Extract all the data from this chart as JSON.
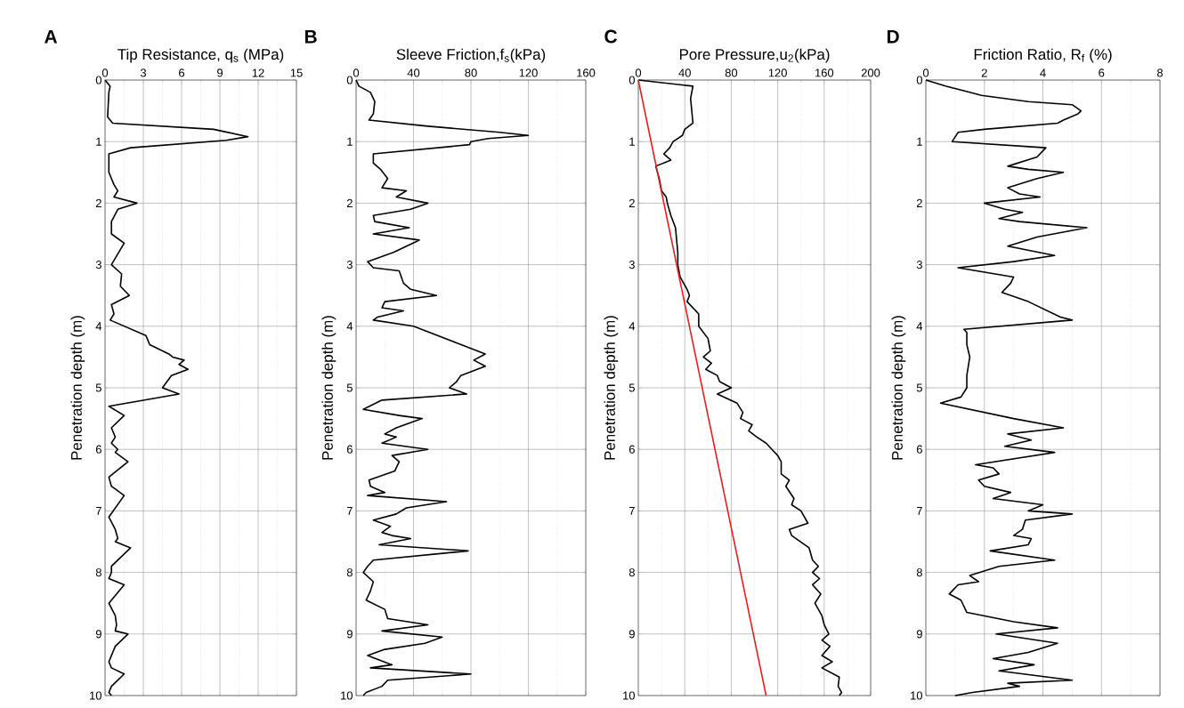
{
  "chart_data": [
    {
      "type": "line",
      "title": "A",
      "xlabel": "Tip Resistance, q$_{s}$ (MPa)",
      "ylabel": "Penetration depth (m)",
      "xlim": [
        0,
        15
      ],
      "xticks": [
        0,
        3,
        6,
        9,
        12,
        15
      ],
      "ylim": [
        10,
        0
      ],
      "yticks": [
        0,
        1,
        2,
        3,
        4,
        5,
        6,
        7,
        8,
        9,
        10
      ],
      "grid": true,
      "series": [
        {
          "color": "#000000",
          "x": [
            0,
            0.4,
            0.3,
            0.2,
            0.6,
            8.5,
            11.2,
            9.5,
            2,
            0.3,
            0.3,
            0.7,
            1,
            0.7,
            2.5,
            1,
            0.5,
            0.5,
            1.5,
            0.5,
            1.3,
            1.2,
            1.9,
            0.5,
            0.7,
            0.4,
            3.2,
            3.5,
            5,
            5.3,
            6.2,
            5.8,
            6.5,
            5.2,
            4.5,
            5.8,
            0.3,
            1.5,
            0.5,
            0.8,
            0.5,
            1,
            0.8,
            1.8,
            0.3,
            0.5,
            1.5,
            0.3,
            0.8,
            1,
            0.8,
            2,
            0.5,
            0.5,
            0.3,
            1.5,
            0.3,
            0.8,
            0.9,
            0.8,
            1.8,
            0.8,
            0.3,
            0.5,
            1.5,
            0.5,
            0.3,
            0.5
          ],
          "values": [
            0,
            0.1,
            0.2,
            0.6,
            0.7,
            0.8,
            0.92,
            0.98,
            1.1,
            1.2,
            1.5,
            1.7,
            1.8,
            1.9,
            2.0,
            2.1,
            2.3,
            2.5,
            2.65,
            3.0,
            3.15,
            3.35,
            3.5,
            3.65,
            3.8,
            3.9,
            4.15,
            4.3,
            4.45,
            4.5,
            4.55,
            4.62,
            4.7,
            4.8,
            5.0,
            5.1,
            5.3,
            5.45,
            5.65,
            5.8,
            5.9,
            6.0,
            6.05,
            6.2,
            6.45,
            6.6,
            6.75,
            7.1,
            7.3,
            7.45,
            7.5,
            7.6,
            7.9,
            8.0,
            8.1,
            8.2,
            8.5,
            8.7,
            8.85,
            8.95,
            9.0,
            9.2,
            9.45,
            9.55,
            9.65,
            9.85,
            9.95,
            10
          ]
        }
      ]
    },
    {
      "type": "line",
      "title": "B",
      "xlabel": "Sleeve Friction,f$_{s}$(kPa)",
      "ylabel": "Penetration depth (m)",
      "xlim": [
        0,
        160
      ],
      "xticks": [
        0,
        40,
        80,
        120,
        160
      ],
      "ylim": [
        10,
        0
      ],
      "yticks": [
        0,
        1,
        2,
        3,
        4,
        5,
        6,
        7,
        8,
        9,
        10
      ],
      "grid": true,
      "series": [
        {
          "color": "#000000",
          "x": [
            0,
            2,
            10,
            13,
            12,
            9,
            50,
            100,
            120,
            92,
            80,
            79,
            12,
            12,
            17,
            22,
            18,
            35,
            28,
            50,
            38,
            12,
            13,
            37,
            12,
            44,
            26,
            8,
            12,
            30,
            33,
            38,
            56,
            20,
            18,
            33,
            15,
            12,
            40,
            90,
            82,
            90,
            73,
            70,
            65,
            77,
            18,
            5,
            30,
            46,
            28,
            20,
            28,
            18,
            50,
            25,
            30,
            27,
            9,
            10,
            20,
            8,
            63,
            35,
            28,
            12,
            24,
            18,
            25,
            38,
            16,
            78,
            12,
            8,
            5,
            12,
            10,
            7,
            20,
            22,
            50,
            18,
            60,
            48,
            20,
            8,
            25,
            10,
            80,
            22,
            18,
            7,
            5
          ],
          "values": [
            0,
            0.1,
            0.2,
            0.35,
            0.55,
            0.65,
            0.75,
            0.85,
            0.9,
            0.95,
            1.0,
            1.05,
            1.2,
            1.35,
            1.45,
            1.6,
            1.75,
            1.8,
            1.9,
            2.0,
            2.1,
            2.2,
            2.3,
            2.4,
            2.5,
            2.6,
            2.8,
            2.95,
            3.05,
            3.1,
            3.3,
            3.4,
            3.5,
            3.6,
            3.7,
            3.75,
            3.85,
            3.9,
            4.0,
            4.45,
            4.55,
            4.65,
            4.8,
            4.9,
            5.0,
            5.1,
            5.2,
            5.35,
            5.45,
            5.5,
            5.65,
            5.75,
            5.8,
            5.9,
            6.0,
            6.1,
            6.2,
            6.35,
            6.5,
            6.6,
            6.7,
            6.75,
            6.85,
            6.95,
            7.05,
            7.15,
            7.25,
            7.35,
            7.4,
            7.45,
            7.55,
            7.65,
            7.8,
            7.9,
            8.0,
            8.15,
            8.3,
            8.45,
            8.6,
            8.75,
            8.85,
            8.95,
            9.05,
            9.15,
            9.25,
            9.35,
            9.5,
            9.55,
            9.65,
            9.75,
            9.85,
            9.95,
            10
          ]
        }
      ]
    },
    {
      "type": "line",
      "title": "C",
      "xlabel": "Pore Pressure,u$_{2}$(kPa)",
      "ylabel": "Penetration depth (m)",
      "xlim": [
        0,
        200
      ],
      "xticks": [
        0,
        40,
        80,
        120,
        160,
        200
      ],
      "ylim": [
        10,
        0
      ],
      "yticks": [
        0,
        1,
        2,
        3,
        4,
        5,
        6,
        7,
        8,
        9,
        10
      ],
      "grid": true,
      "series": [
        {
          "color": "#000000",
          "x": [
            0,
            47,
            45,
            46,
            47,
            40,
            38,
            30,
            27,
            22,
            28,
            15,
            18,
            20,
            24,
            25,
            28,
            32,
            33,
            34,
            34,
            36,
            42,
            44,
            42,
            52,
            52,
            60,
            62,
            56,
            63,
            58,
            68,
            70,
            80,
            68,
            85,
            90,
            88,
            98,
            95,
            102,
            110,
            115,
            120,
            123,
            123,
            130,
            127,
            134,
            132,
            140,
            146,
            130,
            132,
            147,
            150,
            155,
            150,
            156,
            150,
            157,
            152,
            158,
            160,
            164,
            158,
            165,
            158,
            167,
            158,
            173,
            172,
            175,
            173
          ],
          "values": [
            0,
            0.1,
            0.3,
            0.5,
            0.7,
            0.8,
            0.9,
            1.0,
            1.1,
            1.2,
            1.3,
            1.4,
            1.6,
            1.8,
            1.9,
            2.0,
            2.2,
            2.4,
            2.6,
            2.8,
            3.0,
            3.2,
            3.4,
            3.5,
            3.6,
            3.8,
            4.0,
            4.2,
            4.4,
            4.5,
            4.6,
            4.7,
            4.8,
            4.9,
            5.0,
            5.1,
            5.25,
            5.4,
            5.5,
            5.6,
            5.7,
            5.8,
            5.9,
            6.0,
            6.1,
            6.2,
            6.4,
            6.5,
            6.6,
            6.8,
            6.9,
            7.0,
            7.2,
            7.3,
            7.4,
            7.6,
            7.8,
            7.9,
            8.0,
            8.1,
            8.2,
            8.35,
            8.5,
            8.7,
            8.85,
            9.0,
            9.1,
            9.2,
            9.35,
            9.45,
            9.55,
            9.7,
            9.85,
            9.95,
            10
          ]
        },
        {
          "color": "#ee1c1c",
          "x": [
            0,
            110
          ],
          "values": [
            0,
            10
          ]
        }
      ]
    },
    {
      "type": "line",
      "title": "D",
      "xlabel": "Friction Ratio, R$_{f}$ (%)",
      "ylabel": "Penetration depth (m)",
      "xlim": [
        0,
        8
      ],
      "xticks": [
        0,
        2,
        4,
        6,
        8
      ],
      "ylim": [
        10,
        0
      ],
      "yticks": [
        0,
        1,
        2,
        3,
        4,
        5,
        6,
        7,
        8,
        9,
        10
      ],
      "grid": true,
      "series": [
        {
          "color": "#000000",
          "x": [
            0,
            0.7,
            1.5,
            1.9,
            3.5,
            5.0,
            5.3,
            5.2,
            4.7,
            4.5,
            2,
            1.1,
            0.9,
            4.1,
            3.8,
            2.8,
            3.5,
            4.7,
            3.8,
            2.8,
            3.2,
            3.9,
            2.0,
            2.7,
            3.3,
            2.5,
            3.2,
            5.5,
            3.8,
            2.8,
            4.4,
            3.0,
            1.1,
            3.0,
            2.9,
            2.6,
            3.5,
            4.6,
            5.0,
            1.3,
            1.4,
            1.4,
            1.5,
            1.4,
            1.4,
            1.2,
            0.5,
            3.0,
            4.7,
            2.8,
            3.6,
            2.7,
            4.4,
            1.7,
            2.3,
            2.5,
            1.8,
            2.0,
            2.9,
            2.3,
            4.0,
            3.5,
            5.0,
            3.4,
            3.3,
            3.0,
            3.6,
            3.5,
            2.2,
            4.4,
            2.5,
            1.5,
            1.8,
            1.1,
            0.8,
            1.2,
            1.4,
            3.0,
            4.5,
            2.4,
            4.5,
            3.5,
            2.3,
            3.7,
            2.5,
            5.0,
            2.8,
            3.2,
            1.6,
            1.0
          ],
          "values": [
            0,
            0.1,
            0.2,
            0.25,
            0.35,
            0.4,
            0.5,
            0.55,
            0.65,
            0.7,
            0.8,
            0.85,
            1.0,
            1.1,
            1.25,
            1.4,
            1.45,
            1.5,
            1.6,
            1.75,
            1.85,
            1.9,
            2.0,
            2.1,
            2.15,
            2.25,
            2.3,
            2.4,
            2.55,
            2.7,
            2.85,
            2.95,
            3.05,
            3.2,
            3.3,
            3.45,
            3.6,
            3.85,
            3.9,
            4.05,
            4.1,
            4.3,
            4.5,
            4.8,
            5.0,
            5.15,
            5.25,
            5.5,
            5.65,
            5.75,
            5.85,
            5.95,
            6.05,
            6.25,
            6.3,
            6.4,
            6.5,
            6.6,
            6.7,
            6.8,
            6.9,
            7.0,
            7.05,
            7.15,
            7.3,
            7.4,
            7.45,
            7.55,
            7.65,
            7.8,
            7.9,
            8.05,
            8.15,
            8.2,
            8.35,
            8.45,
            8.65,
            8.8,
            8.9,
            9.0,
            9.15,
            9.3,
            9.4,
            9.5,
            9.6,
            9.75,
            9.8,
            9.85,
            9.95,
            10
          ]
        }
      ]
    }
  ]
}
